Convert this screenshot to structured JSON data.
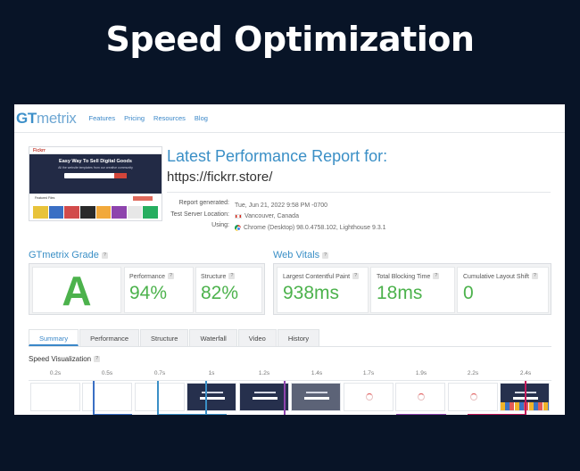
{
  "headline": "Speed Optimization",
  "nav": {
    "logo_gt": "GT",
    "logo_mx": "metrix",
    "links": [
      "Features",
      "Pricing",
      "Resources",
      "Blog"
    ]
  },
  "thumbnail": {
    "site_name": "Fickrr",
    "hero_title": "Easy Way To Sell Digital Goods",
    "hero_sub": "All the website templates from our creative community",
    "featured": "Featured Files"
  },
  "report": {
    "title": "Latest Performance Report for:",
    "url": "https://fickrr.store/",
    "meta": [
      {
        "key": "Report generated:",
        "value": "Tue, Jun 21, 2022 9:58 PM -0700"
      },
      {
        "key": "Test Server Location:",
        "value": "Vancouver, Canada"
      },
      {
        "key": "Using:",
        "value": "Chrome (Desktop) 98.0.4758.102, Lighthouse 9.3.1"
      }
    ]
  },
  "grade": {
    "title": "GTmetrix Grade",
    "letter": "A",
    "performance_label": "Performance",
    "performance_value": "94%",
    "structure_label": "Structure",
    "structure_value": "82%"
  },
  "vitals": {
    "title": "Web Vitals",
    "lcp_label": "Largest Contentful Paint",
    "lcp_value": "938ms",
    "tbt_label": "Total Blocking Time",
    "tbt_value": "18ms",
    "cls_label": "Cumulative Layout Shift",
    "cls_value": "0"
  },
  "tabs": [
    "Summary",
    "Performance",
    "Structure",
    "Waterfall",
    "Video",
    "History"
  ],
  "active_tab": "Summary",
  "speed_visualization": {
    "title": "Speed Visualization",
    "ticks": [
      "0.2s",
      "0.5s",
      "0.7s",
      "1s",
      "1.2s",
      "1.4s",
      "1.7s",
      "1.9s",
      "2.2s",
      "2.4s"
    ]
  },
  "colors": {
    "accent": "#3a8fc6",
    "good": "#4cb24c",
    "background": "#081427"
  }
}
